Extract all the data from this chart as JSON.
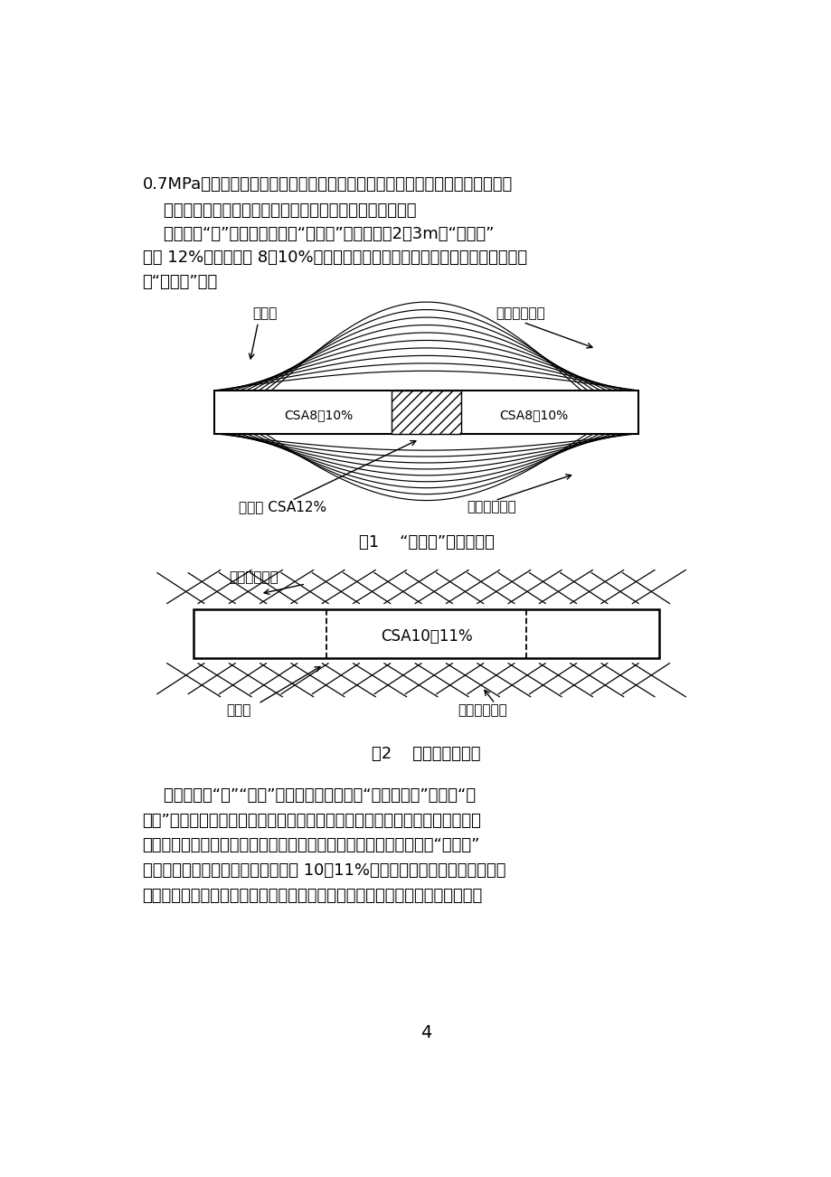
{
  "page_bg": "#ffffff",
  "text_color": "#000000",
  "fs_body": 13,
  "fs_diagram": 11,
  "fs_caption": 13,
  "page_number": "4",
  "para1": "0.7MPa的预压应力，可大致抗消混凝土收缩时产生的拉应力，防止混凝土开裂。",
  "para2": "    对于超长结构工程的无缝施工问题，有两种方式可以选择。",
  "para3_l1": "    方案一：“抗”的原则，即采用“加强带”解决，带剂2～3m，“加强带”",
  "para3_l2": "内掺 12%，带两侧掺 8～10%。带两侧设密孔锂丝网，目的是防止两侧混凝土流",
  "para3_l3": "入“加强带”内。",
  "fig1_caption": "图1    “加强带”做法示意图",
  "fig2_caption": "图2    分段浇筑示意图",
  "fig1_lbl_topleft": "锂丝网",
  "fig1_lbl_topright": "膏胀应力曲线",
  "fig1_lbl_botleft": "加强带 CSA12%",
  "fig1_lbl_botright": "收缩应力曲线",
  "fig1_lbl_rectleft": "CSA8～10%",
  "fig1_lbl_rectright": "CSA8～10%",
  "fig2_lbl_topleft": "膏胀应力曲线",
  "fig2_lbl_botleft": "施工缝",
  "fig2_lbl_botright": "收缩应力曲线",
  "fig2_lbl_center": "CSA10～11%",
  "para4_l1": "    方案二：是“抗”“、放”结合的原则，即采用“留缝不留带”、或者“跳",
  "para4_l2": "仓法”施工，此种方法在地铁、隙道等工程中被普遍采用；采用分段浇筑法后，",
  "para4_l3": "采用一个混凝土配合比就能解决问题，混凝土中的抗裂防水剂掺量与“加强带”",
  "para4_l4": "法稍有不同，掺量介于中间值，一般 10～11%，每段浇筑的混凝土本身确保不",
  "para4_l5": "开裂，并有良好的膏胀性，由于浇筑的每段混凝土都是无收缩的微膏胀混凝土，"
}
